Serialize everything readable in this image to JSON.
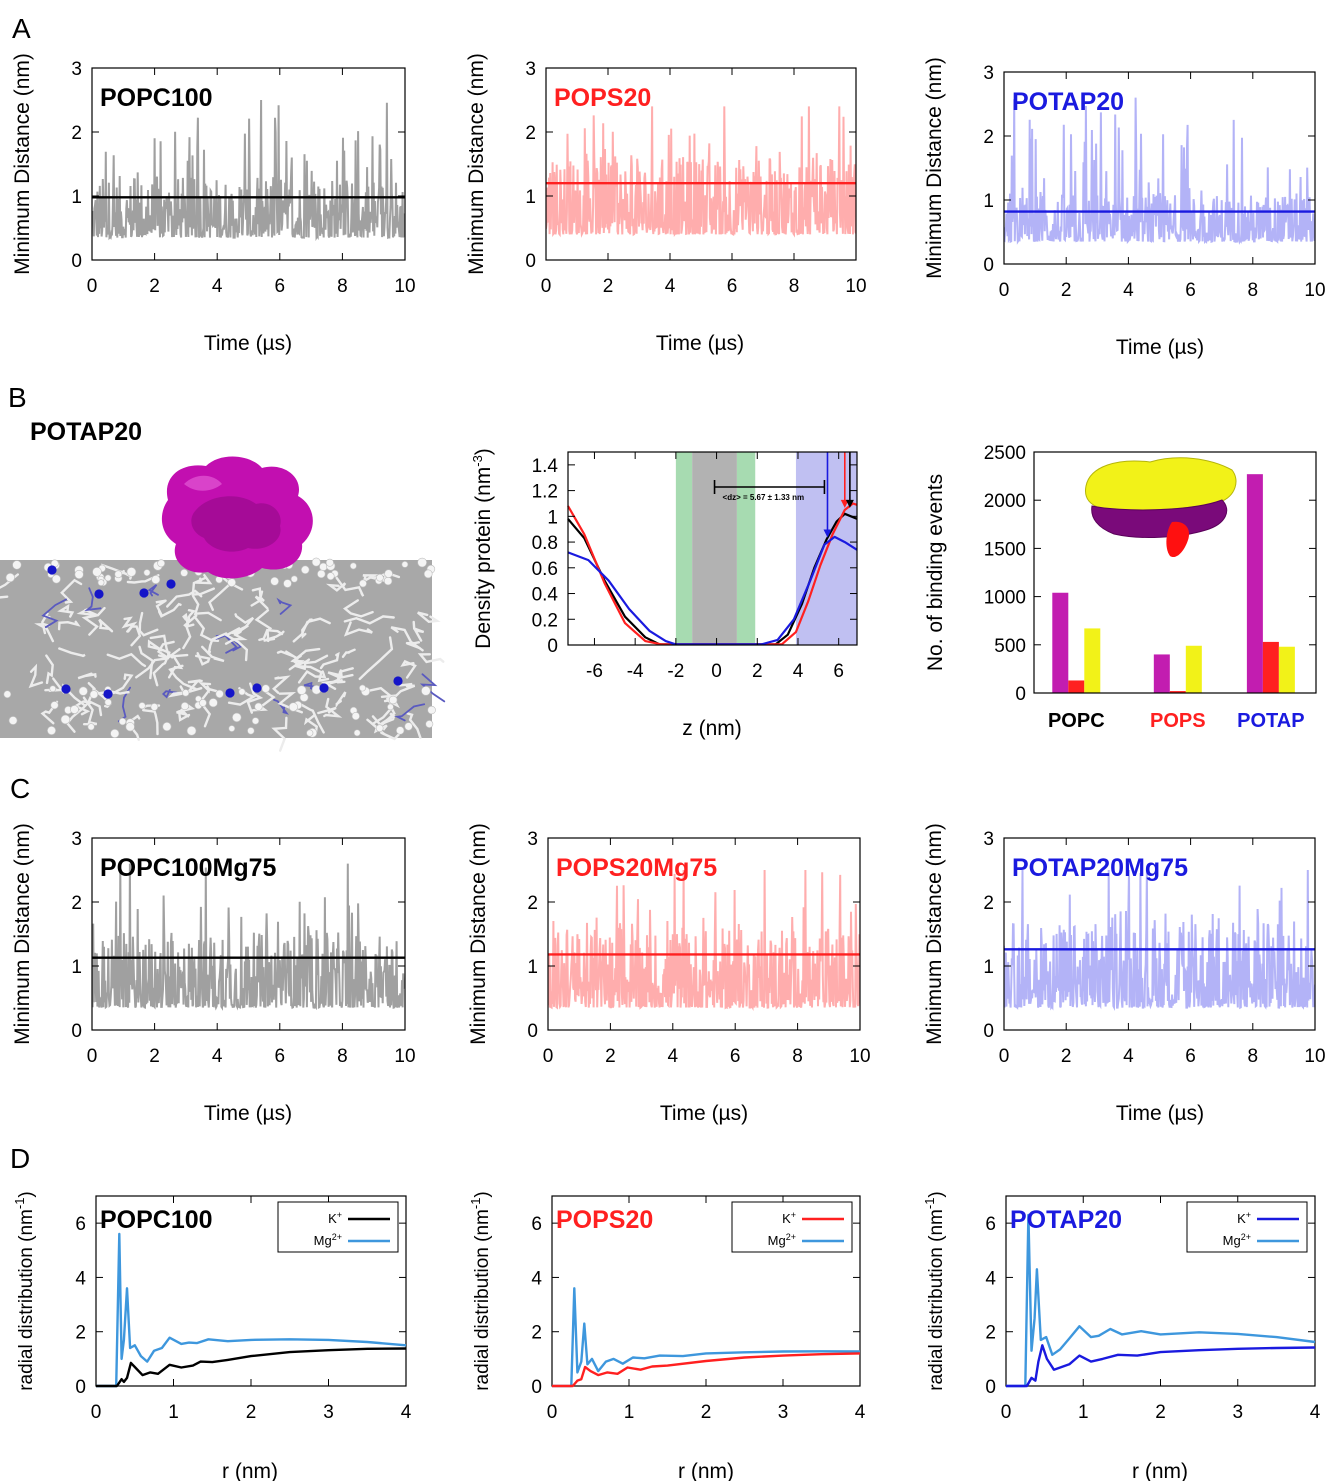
{
  "panel_labels": [
    "A",
    "B",
    "C",
    "D"
  ],
  "colors": {
    "popc": "#000000",
    "pops": "#ff2020",
    "potap": "#1a1adf",
    "popc_trace": "#a0a0a0",
    "pops_trace": "#ffadad",
    "potap_trace": "#b3b3f7",
    "mg_line": "#3e97dd",
    "magenta": "#c21db0",
    "yellow": "#f2f218",
    "green_band": "#a7dbb1",
    "gray_band": "#b2b2b2",
    "blue_band": "#c0c0f2"
  },
  "snapshot": {
    "title": "POTAP20",
    "protein_icon": "protein-surface-icon",
    "membrane_icon": "lipid-bilayer-icon"
  },
  "chart_data": [
    {
      "id": "A1",
      "type": "line",
      "ylabel": "Minimum Distance (nm)",
      "xlabel": "Time (µs)",
      "xlim": [
        0,
        10
      ],
      "ylim": [
        0,
        3
      ],
      "xticks": [
        0,
        2,
        4,
        6,
        8,
        10
      ],
      "yticks": [
        0,
        1,
        2,
        3
      ],
      "annotation": "POPC100",
      "mean_line": 0.98,
      "trace_min": 0.35,
      "trace_max": 2.5,
      "color_key": "popc"
    },
    {
      "id": "A2",
      "type": "line",
      "ylabel": "Minimum Distance (nm)",
      "xlabel": "Time (µs)",
      "xlim": [
        0,
        10
      ],
      "ylim": [
        0,
        3
      ],
      "xticks": [
        0,
        2,
        4,
        6,
        8,
        10
      ],
      "yticks": [
        0,
        1,
        2,
        3
      ],
      "annotation": "POPS20",
      "mean_line": 1.2,
      "trace_min": 0.4,
      "trace_max": 2.4,
      "color_key": "pops"
    },
    {
      "id": "A3",
      "type": "line",
      "ylabel": "Minimum Distance (nm)",
      "xlabel": "Time (µs)",
      "xlim": [
        0,
        10
      ],
      "ylim": [
        0,
        3
      ],
      "xticks": [
        0,
        2,
        4,
        6,
        8,
        10
      ],
      "yticks": [
        0,
        1,
        2,
        3
      ],
      "annotation": "POTAP20",
      "mean_line": 0.82,
      "trace_min": 0.35,
      "trace_max": 2.6,
      "color_key": "potap"
    },
    {
      "id": "B2",
      "type": "line",
      "ylabel": "Density protein (nm",
      "ylabel_sup": "-3",
      "ylabel_end": ")",
      "xlabel": "z (nm)",
      "xlim": [
        -7.3,
        6.9
      ],
      "ylim": [
        0,
        1.5
      ],
      "xticks": [
        -6,
        -4,
        -2,
        0,
        2,
        4,
        6
      ],
      "yticks": [
        0,
        0.2,
        0.4,
        0.6,
        0.8,
        1,
        1.2,
        1.4
      ],
      "ytick_labels": [
        "0",
        "0.2",
        "0.4",
        "0.6",
        "0.8",
        "1",
        "1.2",
        "1.4"
      ],
      "annotation": "<dz> = 5.67  ± 1.33 nm",
      "bands": [
        {
          "from": -2.0,
          "to": -1.2,
          "key": "green_band"
        },
        {
          "from": -1.2,
          "to": 1.0,
          "key": "gray_band"
        },
        {
          "from": 1.0,
          "to": 1.9,
          "key": "green_band"
        },
        {
          "from": 3.9,
          "to": 6.9,
          "key": "blue_band"
        }
      ],
      "series": [
        {
          "color_key": "popc",
          "points": [
            [
              -7.3,
              0.98
            ],
            [
              -6.5,
              0.83
            ],
            [
              -5.5,
              0.5
            ],
            [
              -4.5,
              0.22
            ],
            [
              -3.5,
              0.06
            ],
            [
              -2.8,
              0.005
            ],
            [
              2.9,
              0.005
            ],
            [
              3.5,
              0.08
            ],
            [
              4.2,
              0.32
            ],
            [
              4.8,
              0.6
            ],
            [
              5.4,
              0.82
            ],
            [
              5.9,
              0.96
            ],
            [
              6.3,
              1.02
            ],
            [
              6.6,
              1.0
            ],
            [
              6.9,
              0.98
            ]
          ]
        },
        {
          "color_key": "pops",
          "points": [
            [
              -7.3,
              1.08
            ],
            [
              -6.5,
              0.86
            ],
            [
              -5.5,
              0.48
            ],
            [
              -4.5,
              0.17
            ],
            [
              -3.5,
              0.03
            ],
            [
              -2.7,
              0.005
            ],
            [
              3.2,
              0.005
            ],
            [
              3.9,
              0.1
            ],
            [
              4.5,
              0.34
            ],
            [
              5.1,
              0.62
            ],
            [
              5.7,
              0.86
            ],
            [
              6.3,
              1.05
            ],
            [
              6.7,
              1.1
            ],
            [
              6.9,
              1.09
            ]
          ]
        },
        {
          "color_key": "potap",
          "points": [
            [
              -7.3,
              0.72
            ],
            [
              -6.3,
              0.66
            ],
            [
              -5.3,
              0.5
            ],
            [
              -4.3,
              0.28
            ],
            [
              -3.3,
              0.11
            ],
            [
              -2.5,
              0.03
            ],
            [
              -2.0,
              0.005
            ],
            [
              2.2,
              0.005
            ],
            [
              3.0,
              0.04
            ],
            [
              3.8,
              0.2
            ],
            [
              4.6,
              0.5
            ],
            [
              5.3,
              0.78
            ],
            [
              5.8,
              0.84
            ],
            [
              6.3,
              0.8
            ],
            [
              6.9,
              0.74
            ]
          ]
        }
      ]
    },
    {
      "id": "B3",
      "type": "bar",
      "ylabel": "No. of binding events",
      "ylim": [
        0,
        2500
      ],
      "yticks": [
        0,
        500,
        1000,
        1500,
        2000,
        2500
      ],
      "categories": [
        "POPC",
        "POPS",
        "POTAP"
      ],
      "category_color_keys": [
        "popc",
        "pops",
        "potap"
      ],
      "series": [
        {
          "color_key": "magenta",
          "values": [
            1040,
            400,
            2270
          ]
        },
        {
          "color_key": "pops",
          "values": [
            130,
            20,
            530
          ]
        },
        {
          "color_key": "yellow",
          "values": [
            670,
            490,
            480
          ]
        }
      ]
    },
    {
      "id": "C1",
      "type": "line",
      "ylabel": "Minimum Distance (nm)",
      "xlabel": "Time (µs)",
      "xlim": [
        0,
        10
      ],
      "ylim": [
        0,
        3
      ],
      "xticks": [
        0,
        2,
        4,
        6,
        8,
        10
      ],
      "yticks": [
        0,
        1,
        2,
        3
      ],
      "annotation": "POPC100Mg75",
      "mean_line": 1.13,
      "trace_min": 0.35,
      "trace_max": 2.6,
      "color_key": "popc"
    },
    {
      "id": "C2",
      "type": "line",
      "ylabel": "Minimum Distance (nm)",
      "xlabel": "Time (µs)",
      "xlim": [
        0,
        10
      ],
      "ylim": [
        0,
        3
      ],
      "xticks": [
        0,
        2,
        4,
        6,
        8,
        10
      ],
      "yticks": [
        0,
        1,
        2,
        3
      ],
      "annotation": "POPS20Mg75",
      "mean_line": 1.18,
      "trace_min": 0.35,
      "trace_max": 2.5,
      "color_key": "pops"
    },
    {
      "id": "C3",
      "type": "line",
      "ylabel": "Minimum Distance (nm)",
      "xlabel": "Time (µs)",
      "xlim": [
        0,
        10
      ],
      "ylim": [
        0,
        3
      ],
      "xticks": [
        0,
        2,
        4,
        6,
        8,
        10
      ],
      "yticks": [
        0,
        1,
        2,
        3
      ],
      "annotation": "POTAP20Mg75",
      "mean_line": 1.26,
      "trace_min": 0.35,
      "trace_max": 2.5,
      "color_key": "potap"
    },
    {
      "id": "D1",
      "type": "line",
      "ylabel": "radial distribution (nm",
      "ylabel_sup": "-1",
      "ylabel_end": ")",
      "xlabel": "r (nm)",
      "xlim": [
        0,
        4
      ],
      "ylim": [
        0,
        7
      ],
      "xticks": [
        0,
        1,
        2,
        3,
        4
      ],
      "yticks": [
        0,
        2,
        4,
        6
      ],
      "annotation": "POPC100",
      "legend": [
        {
          "label": "K",
          "sup": "+",
          "color_key": "popc"
        },
        {
          "label": "Mg",
          "sup": "2+",
          "color_key": "mg_line"
        }
      ],
      "series": [
        {
          "color_key": "popc",
          "points": [
            [
              0,
              0
            ],
            [
              0.27,
              0
            ],
            [
              0.33,
              0.25
            ],
            [
              0.36,
              0.15
            ],
            [
              0.4,
              0.3
            ],
            [
              0.45,
              0.85
            ],
            [
              0.5,
              0.7
            ],
            [
              0.6,
              0.4
            ],
            [
              0.7,
              0.5
            ],
            [
              0.8,
              0.45
            ],
            [
              0.95,
              0.78
            ],
            [
              1.1,
              0.68
            ],
            [
              1.25,
              0.75
            ],
            [
              1.35,
              0.9
            ],
            [
              1.5,
              0.88
            ],
            [
              1.7,
              0.96
            ],
            [
              2.0,
              1.1
            ],
            [
              2.5,
              1.25
            ],
            [
              3.0,
              1.32
            ],
            [
              3.5,
              1.37
            ],
            [
              4.0,
              1.38
            ]
          ]
        },
        {
          "color_key": "mg_line",
          "points": [
            [
              0,
              0
            ],
            [
              0.26,
              0
            ],
            [
              0.3,
              5.6
            ],
            [
              0.33,
              1.0
            ],
            [
              0.36,
              1.7
            ],
            [
              0.4,
              3.6
            ],
            [
              0.44,
              1.4
            ],
            [
              0.5,
              1.5
            ],
            [
              0.58,
              1.1
            ],
            [
              0.66,
              0.9
            ],
            [
              0.75,
              1.3
            ],
            [
              0.85,
              1.4
            ],
            [
              0.95,
              1.78
            ],
            [
              1.1,
              1.55
            ],
            [
              1.2,
              1.6
            ],
            [
              1.3,
              1.58
            ],
            [
              1.45,
              1.72
            ],
            [
              1.7,
              1.65
            ],
            [
              2.0,
              1.7
            ],
            [
              2.5,
              1.72
            ],
            [
              3.0,
              1.7
            ],
            [
              3.5,
              1.62
            ],
            [
              4.0,
              1.5
            ]
          ]
        }
      ]
    },
    {
      "id": "D2",
      "type": "line",
      "ylabel": "radial distribution (nm",
      "ylabel_sup": "-1",
      "ylabel_end": ")",
      "xlabel": "r (nm)",
      "xlim": [
        0,
        4
      ],
      "ylim": [
        0,
        7
      ],
      "xticks": [
        0,
        1,
        2,
        3,
        4
      ],
      "yticks": [
        0,
        2,
        4,
        6
      ],
      "annotation": "POPS20",
      "legend": [
        {
          "label": "K",
          "sup": "+",
          "color_key": "pops"
        },
        {
          "label": "Mg",
          "sup": "2+",
          "color_key": "mg_line"
        }
      ],
      "series": [
        {
          "color_key": "pops",
          "points": [
            [
              0,
              0
            ],
            [
              0.27,
              0
            ],
            [
              0.33,
              0.2
            ],
            [
              0.38,
              0.25
            ],
            [
              0.43,
              0.7
            ],
            [
              0.5,
              0.55
            ],
            [
              0.6,
              0.4
            ],
            [
              0.72,
              0.5
            ],
            [
              0.85,
              0.45
            ],
            [
              0.98,
              0.68
            ],
            [
              1.15,
              0.6
            ],
            [
              1.3,
              0.72
            ],
            [
              1.5,
              0.75
            ],
            [
              2.0,
              0.92
            ],
            [
              2.5,
              1.05
            ],
            [
              3.0,
              1.12
            ],
            [
              3.5,
              1.17
            ],
            [
              4.0,
              1.2
            ]
          ]
        },
        {
          "color_key": "mg_line",
          "points": [
            [
              0,
              0
            ],
            [
              0.25,
              0
            ],
            [
              0.29,
              3.6
            ],
            [
              0.33,
              0.5
            ],
            [
              0.38,
              0.9
            ],
            [
              0.42,
              2.3
            ],
            [
              0.46,
              0.8
            ],
            [
              0.52,
              1.0
            ],
            [
              0.6,
              0.55
            ],
            [
              0.7,
              0.9
            ],
            [
              0.8,
              1.0
            ],
            [
              0.92,
              0.82
            ],
            [
              1.05,
              1.05
            ],
            [
              1.2,
              1.02
            ],
            [
              1.4,
              1.12
            ],
            [
              1.7,
              1.1
            ],
            [
              2.0,
              1.2
            ],
            [
              2.5,
              1.24
            ],
            [
              3.0,
              1.27
            ],
            [
              3.5,
              1.28
            ],
            [
              4.0,
              1.27
            ]
          ]
        }
      ]
    },
    {
      "id": "D3",
      "type": "line",
      "ylabel": "radial distribution (nm",
      "ylabel_sup": "-1",
      "ylabel_end": ")",
      "xlabel": "r (nm)",
      "xlim": [
        0,
        4
      ],
      "ylim": [
        0,
        7
      ],
      "xticks": [
        0,
        1,
        2,
        3,
        4
      ],
      "yticks": [
        0,
        2,
        4,
        6
      ],
      "annotation": "POTAP20",
      "legend": [
        {
          "label": "K",
          "sup": "+",
          "color_key": "potap"
        },
        {
          "label": "Mg",
          "sup": "2+",
          "color_key": "mg_line"
        }
      ],
      "series": [
        {
          "color_key": "potap",
          "points": [
            [
              0,
              0
            ],
            [
              0.27,
              0
            ],
            [
              0.33,
              0.3
            ],
            [
              0.38,
              0.2
            ],
            [
              0.42,
              0.9
            ],
            [
              0.47,
              1.5
            ],
            [
              0.53,
              1.0
            ],
            [
              0.62,
              0.6
            ],
            [
              0.72,
              0.7
            ],
            [
              0.82,
              0.8
            ],
            [
              0.95,
              1.12
            ],
            [
              1.1,
              0.9
            ],
            [
              1.25,
              1.0
            ],
            [
              1.45,
              1.15
            ],
            [
              1.7,
              1.12
            ],
            [
              2.0,
              1.25
            ],
            [
              2.5,
              1.32
            ],
            [
              3.0,
              1.37
            ],
            [
              3.5,
              1.4
            ],
            [
              4.0,
              1.42
            ]
          ]
        },
        {
          "color_key": "mg_line",
          "points": [
            [
              0,
              0
            ],
            [
              0.25,
              0
            ],
            [
              0.29,
              6.3
            ],
            [
              0.33,
              1.3
            ],
            [
              0.37,
              2.5
            ],
            [
              0.4,
              4.3
            ],
            [
              0.45,
              1.7
            ],
            [
              0.52,
              1.8
            ],
            [
              0.6,
              1.15
            ],
            [
              0.7,
              1.35
            ],
            [
              0.82,
              1.75
            ],
            [
              0.95,
              2.2
            ],
            [
              1.1,
              1.8
            ],
            [
              1.2,
              1.85
            ],
            [
              1.35,
              2.1
            ],
            [
              1.5,
              1.9
            ],
            [
              1.75,
              2.02
            ],
            [
              2.0,
              1.9
            ],
            [
              2.5,
              1.98
            ],
            [
              3.0,
              1.92
            ],
            [
              3.5,
              1.8
            ],
            [
              4.0,
              1.62
            ]
          ]
        }
      ]
    }
  ]
}
